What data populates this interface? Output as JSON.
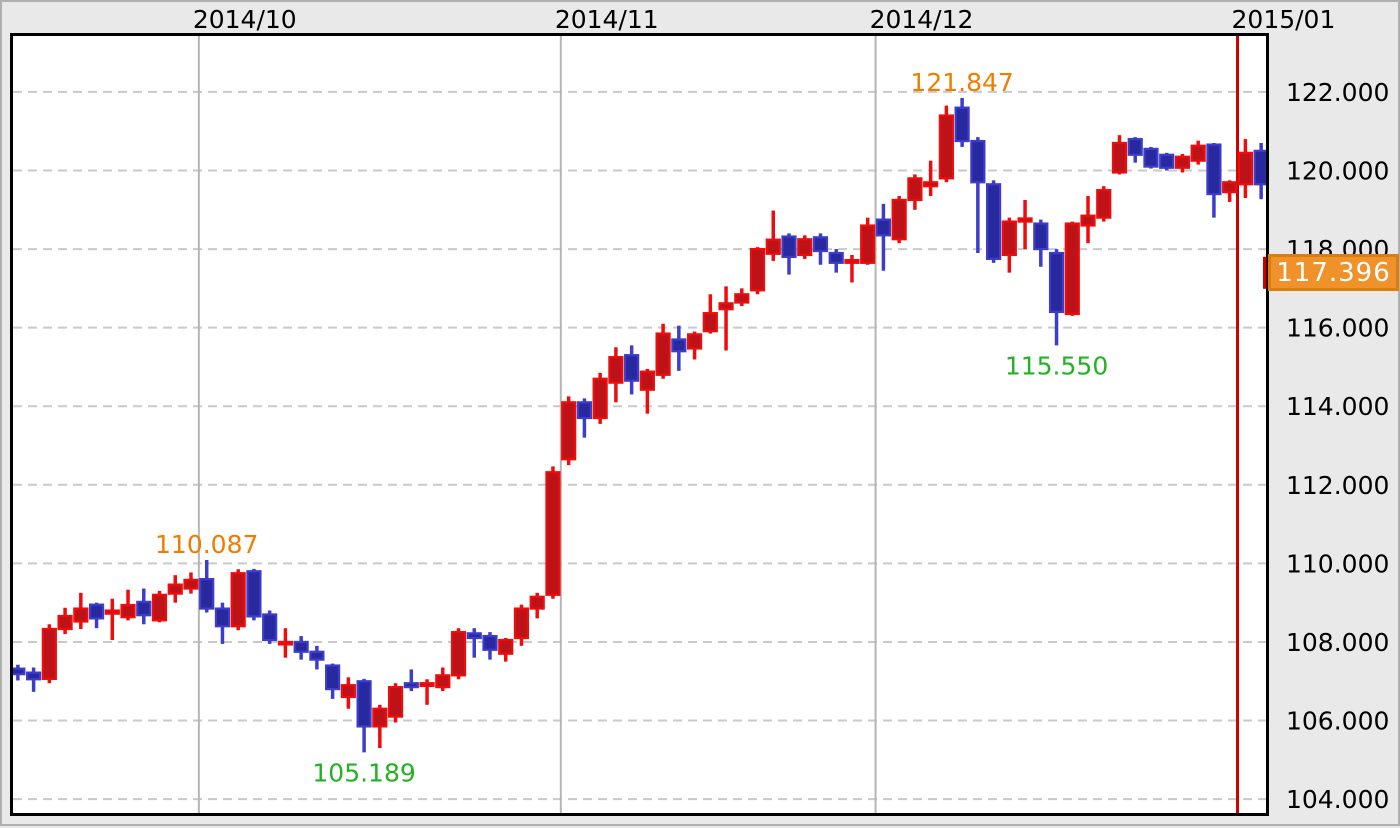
{
  "chart_title": "",
  "axes": {
    "x": {
      "position": "top",
      "labels": [
        {
          "text": "2014/10",
          "slot": 12,
          "highlight": false
        },
        {
          "text": "2014/11",
          "slot": 35,
          "highlight": false
        },
        {
          "text": "2014/12",
          "slot": 55,
          "highlight": false
        },
        {
          "text": "2015/01",
          "slot": 78,
          "highlight": true
        }
      ]
    },
    "y": {
      "position": "right",
      "min": 103.57,
      "max": 123.5,
      "tick_step": 2,
      "ticks": [
        {
          "label": "122.000",
          "value": 122
        },
        {
          "label": "120.000",
          "value": 120
        },
        {
          "label": "118.000",
          "value": 118
        },
        {
          "label": "116.000",
          "value": 116
        },
        {
          "label": "114.000",
          "value": 114
        },
        {
          "label": "112.000",
          "value": 112
        },
        {
          "label": "110.000",
          "value": 110
        },
        {
          "label": "108.000",
          "value": 108
        },
        {
          "label": "106.000",
          "value": 106
        },
        {
          "label": "104.000",
          "value": 104
        }
      ]
    }
  },
  "price_badge": {
    "value": "117.396",
    "price": 117.396,
    "fill": "#f0922b",
    "border": "#d87e0e",
    "text_color": "#ffffff"
  },
  "annotations": [
    {
      "text": "110.087",
      "candle_index": 12,
      "placement": "above",
      "color": "#f07d00"
    },
    {
      "text": "105.189",
      "candle_index": 22,
      "placement": "below",
      "color": "#23b223"
    },
    {
      "text": "121.847",
      "candle_index": 60,
      "placement": "above",
      "color": "#f07d00"
    },
    {
      "text": "115.550",
      "candle_index": 66,
      "placement": "below",
      "color": "#23b223"
    }
  ],
  "colors": {
    "up_fill": "#bd1217",
    "up_border": "#ee0d0d",
    "down_fill": "#28289f",
    "down_border": "#3d3dcc",
    "grid_line": "#c9c9c9",
    "month_line": "#b5b5b5",
    "cursor_line": "#cc0000",
    "plot_bg": "#ffffff",
    "outer_bg": "#e9e9e9",
    "plot_border": "#000000",
    "axis_text": "#000000"
  },
  "chart_data": {
    "type": "candlestick",
    "slots": 80,
    "up_color": "#bd1217",
    "down_color": "#28289f",
    "series_columns": [
      "date",
      "open",
      "high",
      "low",
      "close"
    ],
    "series": [
      [
        "2014-09-15",
        107.32,
        107.42,
        107.02,
        107.18
      ],
      [
        "2014-09-16",
        107.22,
        107.35,
        106.73,
        107.05
      ],
      [
        "2014-09-17",
        107.06,
        108.45,
        106.95,
        108.33
      ],
      [
        "2014-09-18",
        108.33,
        108.87,
        108.2,
        108.66
      ],
      [
        "2014-09-19",
        108.52,
        109.25,
        108.33,
        108.85
      ],
      [
        "2014-09-22",
        108.95,
        109.0,
        108.35,
        108.6
      ],
      [
        "2014-09-23",
        108.72,
        109.1,
        108.05,
        108.8
      ],
      [
        "2014-09-24",
        108.63,
        109.33,
        108.55,
        108.94
      ],
      [
        "2014-09-25",
        109.02,
        109.36,
        108.45,
        108.68
      ],
      [
        "2014-09-26",
        108.55,
        109.3,
        108.5,
        109.2
      ],
      [
        "2014-09-29",
        109.23,
        109.7,
        109.0,
        109.46
      ],
      [
        "2014-09-30",
        109.36,
        109.77,
        109.23,
        109.58
      ],
      [
        "2014-10-01",
        109.6,
        110.087,
        108.75,
        108.85
      ],
      [
        "2014-10-02",
        108.85,
        109.0,
        107.95,
        108.4
      ],
      [
        "2014-10-03",
        108.4,
        109.85,
        108.3,
        109.75
      ],
      [
        "2014-10-06",
        109.8,
        109.86,
        108.55,
        108.65
      ],
      [
        "2014-10-07",
        108.7,
        108.8,
        107.95,
        108.05
      ],
      [
        "2014-10-08",
        107.95,
        108.35,
        107.6,
        108.0
      ],
      [
        "2014-10-09",
        108.0,
        108.15,
        107.55,
        107.75
      ],
      [
        "2014-10-10",
        107.75,
        107.9,
        107.3,
        107.55
      ],
      [
        "2014-10-13",
        107.4,
        107.45,
        106.55,
        106.8
      ],
      [
        "2014-10-14",
        106.6,
        107.1,
        106.3,
        106.9
      ],
      [
        "2014-10-15",
        107.0,
        107.06,
        105.189,
        105.85
      ],
      [
        "2014-10-16",
        105.85,
        106.4,
        105.3,
        106.3
      ],
      [
        "2014-10-17",
        106.1,
        106.95,
        105.95,
        106.85
      ],
      [
        "2014-10-20",
        106.95,
        107.3,
        106.75,
        106.85
      ],
      [
        "2014-10-21",
        106.88,
        107.05,
        106.4,
        106.95
      ],
      [
        "2014-10-22",
        106.85,
        107.35,
        106.75,
        107.15
      ],
      [
        "2014-10-23",
        107.15,
        108.35,
        107.05,
        108.25
      ],
      [
        "2014-10-24",
        108.22,
        108.35,
        107.6,
        108.1
      ],
      [
        "2014-10-27",
        108.15,
        108.25,
        107.55,
        107.8
      ],
      [
        "2014-10-28",
        107.7,
        108.1,
        107.5,
        108.05
      ],
      [
        "2014-10-29",
        108.1,
        108.95,
        107.9,
        108.85
      ],
      [
        "2014-10-30",
        108.85,
        109.25,
        108.6,
        109.15
      ],
      [
        "2014-10-31",
        109.2,
        112.47,
        109.1,
        112.32
      ],
      [
        "2014-11-03",
        112.65,
        114.25,
        112.5,
        114.1
      ],
      [
        "2014-11-04",
        114.1,
        114.2,
        113.2,
        113.7
      ],
      [
        "2014-11-05",
        113.7,
        114.85,
        113.55,
        114.7
      ],
      [
        "2014-11-06",
        114.6,
        115.5,
        114.1,
        115.25
      ],
      [
        "2014-11-07",
        115.3,
        115.55,
        114.3,
        114.65
      ],
      [
        "2014-11-10",
        114.42,
        114.95,
        113.81,
        114.88
      ],
      [
        "2014-11-11",
        114.8,
        116.1,
        114.7,
        115.85
      ],
      [
        "2014-11-12",
        115.7,
        116.05,
        114.9,
        115.4
      ],
      [
        "2014-11-13",
        115.47,
        115.9,
        115.19,
        115.83
      ],
      [
        "2014-11-14",
        115.91,
        116.85,
        115.85,
        116.37
      ],
      [
        "2014-11-17",
        116.47,
        117.05,
        115.42,
        116.62
      ],
      [
        "2014-11-18",
        116.64,
        117.0,
        116.55,
        116.85
      ],
      [
        "2014-11-19",
        116.95,
        118.05,
        116.85,
        118.0
      ],
      [
        "2014-11-20",
        117.88,
        118.98,
        117.7,
        118.24
      ],
      [
        "2014-11-21",
        118.32,
        118.4,
        117.35,
        117.8
      ],
      [
        "2014-11-24",
        117.85,
        118.35,
        117.75,
        118.25
      ],
      [
        "2014-11-25",
        118.3,
        118.4,
        117.6,
        117.95
      ],
      [
        "2014-11-26",
        117.9,
        118.0,
        117.4,
        117.65
      ],
      [
        "2014-11-27",
        117.65,
        117.85,
        117.15,
        117.72
      ],
      [
        "2014-11-28",
        117.65,
        118.8,
        117.6,
        118.6
      ],
      [
        "2014-12-01",
        118.75,
        119.15,
        117.45,
        118.35
      ],
      [
        "2014-12-02",
        118.25,
        119.35,
        118.15,
        119.25
      ],
      [
        "2014-12-03",
        119.25,
        119.9,
        119.0,
        119.8
      ],
      [
        "2014-12-04",
        119.6,
        120.25,
        119.35,
        119.7
      ],
      [
        "2014-12-05",
        119.8,
        121.65,
        119.7,
        121.4
      ],
      [
        "2014-12-08",
        121.6,
        121.847,
        120.6,
        120.75
      ],
      [
        "2014-12-09",
        120.75,
        120.85,
        117.9,
        119.7
      ],
      [
        "2014-12-10",
        119.65,
        119.75,
        117.65,
        117.75
      ],
      [
        "2014-12-11",
        117.85,
        118.8,
        117.4,
        118.7
      ],
      [
        "2014-12-12",
        118.7,
        119.25,
        118.0,
        118.78
      ],
      [
        "2014-12-15",
        118.65,
        118.75,
        117.55,
        118.0
      ],
      [
        "2014-12-16",
        117.9,
        118.0,
        115.55,
        116.4
      ],
      [
        "2014-12-17",
        116.35,
        118.7,
        116.3,
        118.65
      ],
      [
        "2014-12-18",
        118.6,
        119.35,
        118.15,
        118.85
      ],
      [
        "2014-12-19",
        118.8,
        119.6,
        118.7,
        119.5
      ],
      [
        "2014-12-22",
        119.95,
        120.9,
        119.9,
        120.7
      ],
      [
        "2014-12-23",
        120.8,
        120.85,
        120.2,
        120.4
      ],
      [
        "2014-12-24",
        120.55,
        120.6,
        120.05,
        120.1
      ],
      [
        "2014-12-25",
        120.4,
        120.45,
        120.0,
        120.07
      ],
      [
        "2014-12-26",
        120.07,
        120.42,
        119.95,
        120.35
      ],
      [
        "2014-12-29",
        120.25,
        120.76,
        120.15,
        120.63
      ],
      [
        "2014-12-30",
        120.66,
        120.7,
        118.8,
        119.4
      ],
      [
        "2014-12-31",
        119.45,
        119.75,
        119.2,
        119.7
      ],
      [
        "2015-01-02",
        119.65,
        120.8,
        119.3,
        120.45
      ],
      [
        "2015-01-05",
        120.5,
        120.7,
        119.27,
        119.65
      ]
    ]
  }
}
